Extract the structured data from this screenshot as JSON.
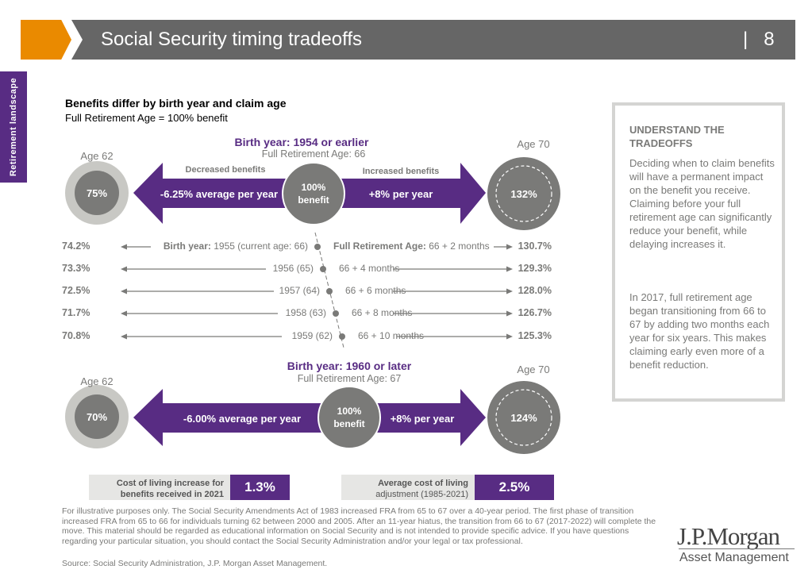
{
  "header": {
    "title": "Social Security timing tradeoffs",
    "page_number": "8",
    "separator": "|"
  },
  "side_tab": "Retirement landscape",
  "heading": {
    "title": "Benefits differ by birth year and claim age",
    "subtitle": "Full Retirement Age = 100% benefit"
  },
  "top": {
    "birth_year_label": "Birth year:",
    "birth_year": "1954 or earlier",
    "fra": "Full Retirement Age: 66",
    "age62": "Age 62",
    "age70": "Age 70",
    "left_value": "75%",
    "right_value": "132%",
    "center": [
      "100%",
      "benefit"
    ],
    "decreased": "Decreased benefits",
    "increased": "Increased benefits",
    "left_rate": "-6.25% average per year",
    "right_rate": "+8% per year"
  },
  "rows": [
    {
      "left": "74.2%",
      "birth_prefix": "Birth year:",
      "birth": "1955 (current age: 66)",
      "fra_prefix": "Full Retirement Age:",
      "fra": "66 + 2 months",
      "right": "130.7%"
    },
    {
      "left": "73.3%",
      "birth_prefix": "",
      "birth": "1956 (65)",
      "fra_prefix": "",
      "fra": "66 + 4 months",
      "right": "129.3%"
    },
    {
      "left": "72.5%",
      "birth_prefix": "",
      "birth": "1957 (64)",
      "fra_prefix": "",
      "fra": "66 + 6 months",
      "right": "128.0%"
    },
    {
      "left": "71.7%",
      "birth_prefix": "",
      "birth": "1958 (63)",
      "fra_prefix": "",
      "fra": "66 + 8 months",
      "right": "126.7%"
    },
    {
      "left": "70.8%",
      "birth_prefix": "",
      "birth": "1959 (62)",
      "fra_prefix": "",
      "fra": "66 + 10 months",
      "right": "125.3%"
    }
  ],
  "bottom": {
    "birth_year_label": "Birth year:",
    "birth_year": "1960 or later",
    "fra": "Full Retirement Age: 67",
    "age62": "Age 62",
    "age70": "Age 70",
    "left_value": "70%",
    "right_value": "124%",
    "center": [
      "100%",
      "benefit"
    ],
    "left_rate": "-6.00% average per year",
    "right_rate": "+8% per year"
  },
  "stats": [
    {
      "label": [
        "Cost of living increase for",
        "benefits received in 2021"
      ],
      "value": "1.3%"
    },
    {
      "label": [
        "Average cost of living",
        "adjustment (1985-2021)"
      ],
      "value": "2.5%"
    }
  ],
  "panel": {
    "title": "UNDERSTAND THE TRADEOFFS",
    "p1": "Deciding when to claim benefits will have a permanent impact on the benefit you receive. Claiming before your full retirement age can significantly reduce your benefit, while delaying increases it.",
    "p2": "In 2017, full retirement age began transitioning from 66 to 67 by adding two months each year for six years. This makes claiming early even more of a benefit reduction."
  },
  "footnote": "For illustrative purposes only. The Social Security Amendments Act of 1983 increased FRA from 65 to 67 over a 40-year period. The first phase of transition increased FRA from 65 to 66 for individuals turning 62 between 2000 and 2005. After an 11-year hiatus, the transition from 66 to 67 (2017-2022) will complete the move. This material should be regarded as educational information on Social Security and is not intended to provide specific advice. If you have questions regarding your particular situation, you should contact the Social Security Administration and/or your legal or tax professional.",
  "source": "Source: Social Security Administration, J.P. Morgan Asset Management.",
  "logo": {
    "name": "J.P.Morgan",
    "sub": "Asset Management"
  },
  "colors": {
    "purple": "#582c83",
    "orange": "#ea8a00",
    "gray": "#7a7a78",
    "header": "#666666"
  }
}
